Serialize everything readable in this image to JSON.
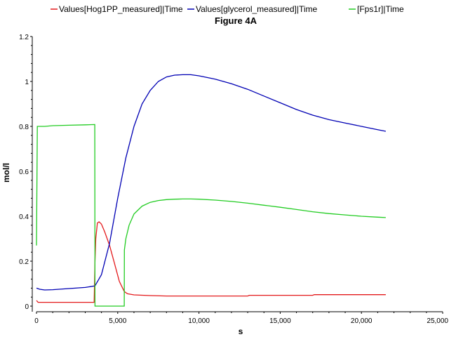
{
  "chart_data": {
    "type": "line",
    "title": "Figure 4A",
    "xlabel": "s",
    "ylabel": "mol/l",
    "xlim": [
      0,
      25000
    ],
    "ylim": [
      0,
      1.2
    ],
    "xticks": [
      0,
      5000,
      10000,
      15000,
      20000,
      25000
    ],
    "xtick_labels": [
      "0",
      "5,000",
      "10,000",
      "15,000",
      "20,000",
      "25,000"
    ],
    "yticks": [
      0,
      0.2,
      0.4,
      0.6,
      0.8,
      1,
      1.2
    ],
    "ytick_labels": [
      "0",
      "0.2",
      "0.4",
      "0.6",
      "0.8",
      "1",
      "1.2"
    ],
    "grid": false,
    "legend_position": "top",
    "series": [
      {
        "name": "Values[Hog1PP_measured]|Time",
        "color": "#e41a1c",
        "x": [
          0,
          100,
          1000,
          2000,
          3000,
          3550,
          3600,
          3650,
          3750,
          3850,
          4000,
          4200,
          4500,
          4800,
          5100,
          5400,
          5600,
          6000,
          7000,
          8000,
          10000,
          12000,
          13000,
          13100,
          15000,
          17000,
          17100,
          19000,
          21500
        ],
        "y": [
          0.025,
          0.017,
          0.017,
          0.017,
          0.017,
          0.017,
          0.2,
          0.3,
          0.37,
          0.375,
          0.365,
          0.33,
          0.27,
          0.19,
          0.11,
          0.065,
          0.055,
          0.05,
          0.047,
          0.045,
          0.045,
          0.045,
          0.045,
          0.048,
          0.048,
          0.048,
          0.051,
          0.051,
          0.051
        ]
      },
      {
        "name": "Values[glycerol_measured]|Time",
        "color": "#0000b4",
        "x": [
          0,
          200,
          500,
          1000,
          2000,
          3000,
          3600,
          4000,
          4500,
          5000,
          5500,
          6000,
          6500,
          7000,
          7500,
          8000,
          8500,
          9000,
          9500,
          10000,
          11000,
          12000,
          13000,
          14000,
          15000,
          16000,
          17000,
          18000,
          19000,
          20000,
          21000,
          21500
        ],
        "y": [
          0.08,
          0.075,
          0.072,
          0.073,
          0.078,
          0.083,
          0.09,
          0.14,
          0.28,
          0.48,
          0.66,
          0.8,
          0.9,
          0.96,
          1.0,
          1.02,
          1.028,
          1.03,
          1.03,
          1.025,
          1.01,
          0.99,
          0.965,
          0.935,
          0.905,
          0.875,
          0.85,
          0.83,
          0.815,
          0.8,
          0.785,
          0.778
        ]
      },
      {
        "name": "[Fps1r]|Time",
        "color": "#22cc22",
        "x": [
          0,
          50,
          100,
          500,
          1000,
          2000,
          3000,
          3590,
          3600,
          3650,
          5400,
          5410,
          5500,
          5700,
          6000,
          6500,
          7000,
          7500,
          8000,
          8500,
          9000,
          9500,
          10000,
          11000,
          12000,
          13000,
          14000,
          15000,
          16000,
          17000,
          18000,
          19000,
          20000,
          21000,
          21500
        ],
        "y": [
          0.27,
          0.8,
          0.8,
          0.8,
          0.803,
          0.805,
          0.807,
          0.808,
          0.0,
          0.0,
          0.0,
          0.25,
          0.3,
          0.36,
          0.41,
          0.445,
          0.462,
          0.47,
          0.474,
          0.476,
          0.477,
          0.477,
          0.476,
          0.472,
          0.466,
          0.458,
          0.449,
          0.44,
          0.43,
          0.42,
          0.412,
          0.406,
          0.4,
          0.396,
          0.394
        ]
      }
    ]
  }
}
